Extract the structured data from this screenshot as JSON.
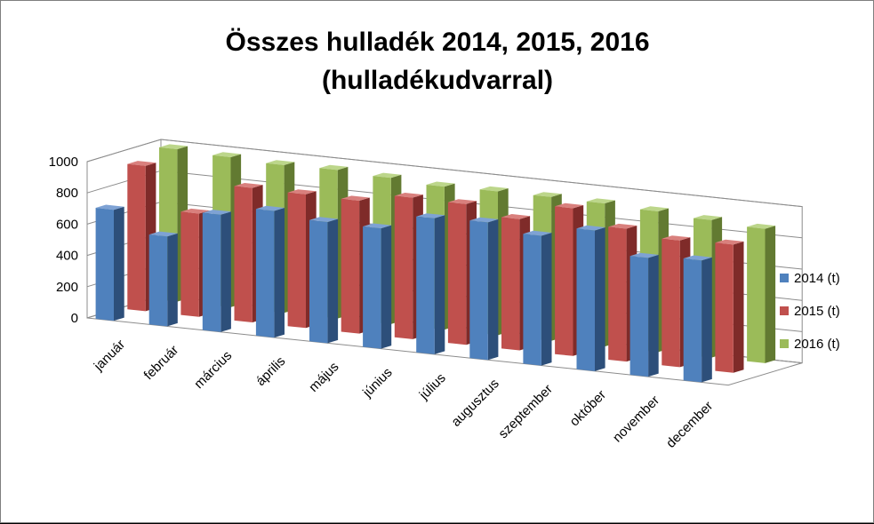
{
  "chart_data": {
    "type": "bar",
    "title_lines": [
      "Összes hulladék 2014, 2015, 2016",
      "(hulladékudvarral)"
    ],
    "categories": [
      "január",
      "február",
      "március",
      "április",
      "május",
      "június",
      "július",
      "augusztus",
      "szeptember",
      "október",
      "november",
      "december"
    ],
    "series": [
      {
        "name": "2014 (t)",
        "values": [
          710,
          575,
          750,
          810,
          775,
          770,
          870,
          880,
          830,
          900,
          760,
          780
        ]
      },
      {
        "name": "2015 (t)",
        "values": [
          930,
          660,
          860,
          855,
          850,
          905,
          900,
          840,
          945,
          850,
          810,
          820
        ]
      },
      {
        "name": "2016 (t)",
        "values": [
          975,
          960,
          945,
          950,
          935,
          915,
          920,
          920,
          915,
          900,
          880,
          860
        ]
      }
    ],
    "colors": {
      "2014 (t)": {
        "front": "#4f81bd",
        "side": "#2d4f7a",
        "top": "#7ea2d4"
      },
      "2015 (t)": {
        "front": "#c0504d",
        "side": "#7f2b29",
        "top": "#d9807d"
      },
      "2016 (t)": {
        "front": "#9bbb59",
        "side": "#627a31",
        "top": "#bcd68a"
      }
    },
    "ylim": [
      0,
      1000
    ],
    "yticks": [
      0,
      200,
      400,
      600,
      800,
      1000
    ],
    "gridlines": true,
    "legend_position": "right",
    "xlabel": "",
    "ylabel": ""
  }
}
